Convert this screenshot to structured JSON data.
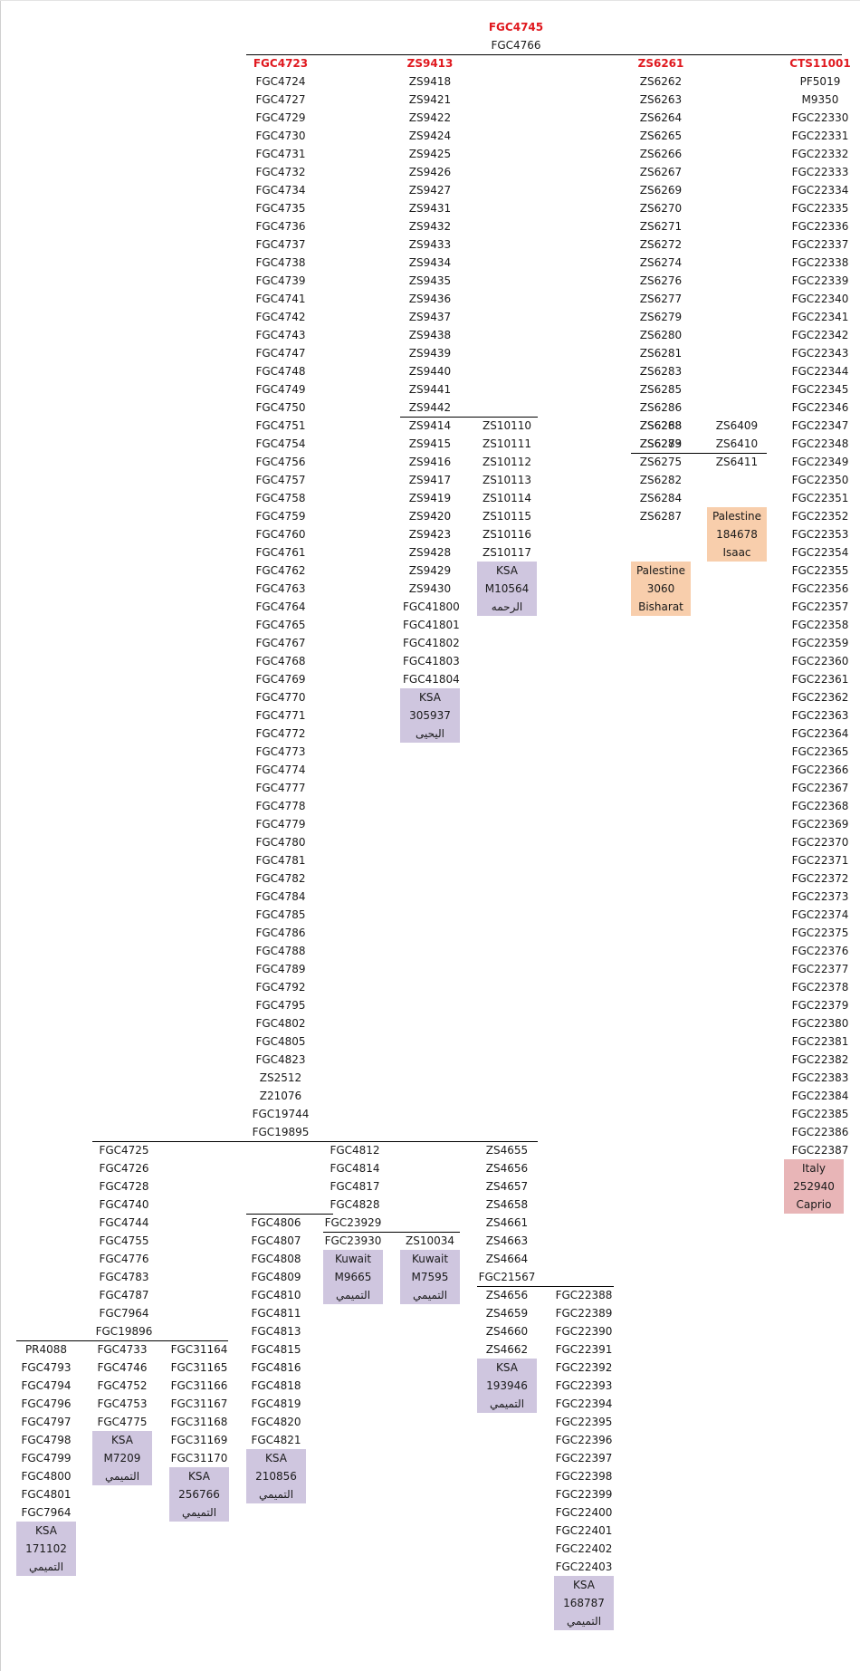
{
  "colors": {
    "head_text": "#e0191f",
    "text": "#1a1a1a",
    "ksa_box": "#cfc6df",
    "kuwait_box": "#cfc6df",
    "palestine_box": "#f8ceac",
    "italy_box": "#e8b5b7"
  },
  "columns": [
    {
      "id": "root",
      "cells": [
        {
          "t": "FGC4745",
          "h": true
        },
        {
          "t": "FGC4766"
        }
      ]
    },
    {
      "id": "fgc4723",
      "cells": [
        {
          "t": "FGC4723",
          "h": true
        },
        {
          "t": "FGC4724"
        },
        {
          "t": "FGC4727"
        },
        {
          "t": "FGC4729"
        },
        {
          "t": "FGC4730"
        },
        {
          "t": "FGC4731"
        },
        {
          "t": "FGC4732"
        },
        {
          "t": "FGC4734"
        },
        {
          "t": "FGC4735"
        },
        {
          "t": "FGC4736"
        },
        {
          "t": "FGC4737"
        },
        {
          "t": "FGC4738"
        },
        {
          "t": "FGC4739"
        },
        {
          "t": "FGC4741"
        },
        {
          "t": "FGC4742"
        },
        {
          "t": "FGC4743"
        },
        {
          "t": "FGC4747"
        },
        {
          "t": "FGC4748"
        },
        {
          "t": "FGC4749"
        },
        {
          "t": "FGC4750"
        },
        {
          "t": "FGC4751"
        },
        {
          "t": "FGC4754"
        },
        {
          "t": "FGC4756"
        },
        {
          "t": "FGC4757"
        },
        {
          "t": "FGC4758"
        },
        {
          "t": "FGC4759"
        },
        {
          "t": "FGC4760"
        },
        {
          "t": "FGC4761"
        },
        {
          "t": "FGC4762"
        },
        {
          "t": "FGC4763"
        },
        {
          "t": "FGC4764"
        },
        {
          "t": "FGC4765"
        },
        {
          "t": "FGC4767"
        },
        {
          "t": "FGC4768"
        },
        {
          "t": "FGC4769"
        },
        {
          "t": "FGC4770"
        },
        {
          "t": "FGC4771"
        },
        {
          "t": "FGC4772"
        },
        {
          "t": "FGC4773"
        },
        {
          "t": "FGC4774"
        },
        {
          "t": "FGC4777"
        },
        {
          "t": "FGC4778"
        },
        {
          "t": "FGC4779"
        },
        {
          "t": "FGC4780"
        },
        {
          "t": "FGC4781"
        },
        {
          "t": "FGC4782"
        },
        {
          "t": "FGC4784"
        },
        {
          "t": "FGC4785"
        },
        {
          "t": "FGC4786"
        },
        {
          "t": "FGC4788"
        },
        {
          "t": "FGC4789"
        },
        {
          "t": "FGC4792"
        },
        {
          "t": "FGC4795"
        },
        {
          "t": "FGC4802"
        },
        {
          "t": "FGC4805"
        },
        {
          "t": "FGC4823"
        },
        {
          "t": "ZS2512"
        },
        {
          "t": "Z21076"
        },
        {
          "t": "FGC19744"
        },
        {
          "t": "FGC19895"
        }
      ]
    },
    {
      "id": "zs9413",
      "cells": [
        {
          "t": "ZS9413",
          "h": true
        },
        {
          "t": "ZS9418"
        },
        {
          "t": "ZS9421"
        },
        {
          "t": "ZS9422"
        },
        {
          "t": "ZS9424"
        },
        {
          "t": "ZS9425"
        },
        {
          "t": "ZS9426"
        },
        {
          "t": "ZS9427"
        },
        {
          "t": "ZS9431"
        },
        {
          "t": "ZS9432"
        },
        {
          "t": "ZS9433"
        },
        {
          "t": "ZS9434"
        },
        {
          "t": "ZS9435"
        },
        {
          "t": "ZS9436"
        },
        {
          "t": "ZS9437"
        },
        {
          "t": "ZS9438"
        },
        {
          "t": "ZS9439"
        },
        {
          "t": "ZS9440"
        },
        {
          "t": "ZS9441"
        },
        {
          "t": "ZS9442"
        }
      ]
    },
    {
      "id": "zs9414",
      "cells": [
        {
          "t": "ZS9414"
        },
        {
          "t": "ZS9415"
        },
        {
          "t": "ZS9416"
        },
        {
          "t": "ZS9417"
        },
        {
          "t": "ZS9419"
        },
        {
          "t": "ZS9420"
        },
        {
          "t": "ZS9423"
        },
        {
          "t": "ZS9428"
        },
        {
          "t": "ZS9429"
        },
        {
          "t": "ZS9430"
        },
        {
          "t": "FGC41800"
        },
        {
          "t": "FGC41801"
        },
        {
          "t": "FGC41802"
        },
        {
          "t": "FGC41803"
        },
        {
          "t": "FGC41804"
        }
      ]
    },
    {
      "id": "zs10110",
      "cells": [
        {
          "t": "ZS10110"
        },
        {
          "t": "ZS10111"
        },
        {
          "t": "ZS10112"
        },
        {
          "t": "ZS10113"
        },
        {
          "t": "ZS10114"
        },
        {
          "t": "ZS10115"
        },
        {
          "t": "ZS10116"
        },
        {
          "t": "ZS10117"
        }
      ]
    },
    {
      "id": "zs6261",
      "cells": [
        {
          "t": "ZS6261",
          "h": true
        },
        {
          "t": "ZS6262"
        },
        {
          "t": "ZS6263"
        },
        {
          "t": "ZS6264"
        },
        {
          "t": "ZS6265"
        },
        {
          "t": "ZS6266"
        },
        {
          "t": "ZS6267"
        },
        {
          "t": "ZS6269"
        },
        {
          "t": "ZS6270"
        },
        {
          "t": "ZS6271"
        },
        {
          "t": "ZS6272"
        },
        {
          "t": "ZS6274"
        },
        {
          "t": "ZS6276"
        },
        {
          "t": "ZS6277"
        },
        {
          "t": "ZS6279"
        },
        {
          "t": "ZS6280"
        },
        {
          "t": "ZS6281"
        },
        {
          "t": "ZS6283"
        },
        {
          "t": "ZS6285"
        },
        {
          "t": "ZS6286"
        },
        {
          "t": "ZS6288"
        },
        {
          "t": "ZS6289"
        }
      ]
    },
    {
      "id": "zs6268",
      "cells": [
        {
          "t": "ZS6268"
        },
        {
          "t": "ZS6273"
        },
        {
          "t": "ZS6275"
        },
        {
          "t": "ZS6282"
        },
        {
          "t": "ZS6284"
        },
        {
          "t": "ZS6287"
        }
      ]
    },
    {
      "id": "zs6409",
      "cells": [
        {
          "t": "ZS6409"
        },
        {
          "t": "ZS6410"
        },
        {
          "t": "ZS6411"
        }
      ]
    },
    {
      "id": "cts11001",
      "cells": [
        {
          "t": "CTS11001",
          "h": true
        },
        {
          "t": "PF5019"
        },
        {
          "t": "M9350"
        },
        {
          "t": "FGC22330"
        },
        {
          "t": "FGC22331"
        },
        {
          "t": "FGC22332"
        },
        {
          "t": "FGC22333"
        },
        {
          "t": "FGC22334"
        },
        {
          "t": "FGC22335"
        },
        {
          "t": "FGC22336"
        },
        {
          "t": "FGC22337"
        },
        {
          "t": "FGC22338"
        },
        {
          "t": "FGC22339"
        },
        {
          "t": "FGC22340"
        },
        {
          "t": "FGC22341"
        },
        {
          "t": "FGC22342"
        },
        {
          "t": "FGC22343"
        },
        {
          "t": "FGC22344"
        },
        {
          "t": "FGC22345"
        },
        {
          "t": "FGC22346"
        },
        {
          "t": "FGC22347"
        },
        {
          "t": "FGC22348"
        },
        {
          "t": "FGC22349"
        },
        {
          "t": "FGC22350"
        },
        {
          "t": "FGC22351"
        },
        {
          "t": "FGC22352"
        },
        {
          "t": "FGC22353"
        },
        {
          "t": "FGC22354"
        },
        {
          "t": "FGC22355"
        },
        {
          "t": "FGC22356"
        },
        {
          "t": "FGC22357"
        },
        {
          "t": "FGC22358"
        },
        {
          "t": "FGC22359"
        },
        {
          "t": "FGC22360"
        },
        {
          "t": "FGC22361"
        },
        {
          "t": "FGC22362"
        },
        {
          "t": "FGC22363"
        },
        {
          "t": "FGC22364"
        },
        {
          "t": "FGC22365"
        },
        {
          "t": "FGC22366"
        },
        {
          "t": "FGC22367"
        },
        {
          "t": "FGC22368"
        },
        {
          "t": "FGC22369"
        },
        {
          "t": "FGC22370"
        },
        {
          "t": "FGC22371"
        },
        {
          "t": "FGC22372"
        },
        {
          "t": "FGC22373"
        },
        {
          "t": "FGC22374"
        },
        {
          "t": "FGC22375"
        },
        {
          "t": "FGC22376"
        },
        {
          "t": "FGC22377"
        },
        {
          "t": "FGC22378"
        },
        {
          "t": "FGC22379"
        },
        {
          "t": "FGC22380"
        },
        {
          "t": "FGC22381"
        },
        {
          "t": "FGC22382"
        },
        {
          "t": "FGC22383"
        },
        {
          "t": "FGC22384"
        },
        {
          "t": "FGC22385"
        },
        {
          "t": "FGC22386"
        },
        {
          "t": "FGC22387"
        }
      ]
    },
    {
      "id": "fgc4725",
      "cells": [
        {
          "t": "FGC4725"
        },
        {
          "t": "FGC4726"
        },
        {
          "t": "FGC4728"
        },
        {
          "t": "FGC4740"
        },
        {
          "t": "FGC4744"
        },
        {
          "t": "FGC4755"
        },
        {
          "t": "FGC4776"
        },
        {
          "t": "FGC4783"
        },
        {
          "t": "FGC4787"
        },
        {
          "t": "FGC7964"
        },
        {
          "t": "FGC19896"
        }
      ]
    },
    {
      "id": "fgc4812",
      "cells": [
        {
          "t": "FGC4812"
        },
        {
          "t": "FGC4814"
        },
        {
          "t": "FGC4817"
        },
        {
          "t": "FGC4828"
        }
      ]
    },
    {
      "id": "zs4655",
      "cells": [
        {
          "t": "ZS4655"
        },
        {
          "t": "ZS4656"
        },
        {
          "t": "ZS4657"
        },
        {
          "t": "ZS4658"
        },
        {
          "t": "ZS4661"
        },
        {
          "t": "ZS4663"
        },
        {
          "t": "ZS4664"
        },
        {
          "t": "FGC21567"
        }
      ]
    },
    {
      "id": "fgc4806",
      "cells": [
        {
          "t": "FGC4806"
        },
        {
          "t": "FGC4807"
        },
        {
          "t": "FGC4808"
        },
        {
          "t": "FGC4809"
        },
        {
          "t": "FGC4810"
        },
        {
          "t": "FGC4811"
        },
        {
          "t": "FGC4813"
        },
        {
          "t": "FGC4815"
        },
        {
          "t": "FGC4816"
        },
        {
          "t": "FGC4818"
        },
        {
          "t": "FGC4819"
        },
        {
          "t": "FGC4820"
        },
        {
          "t": "FGC4821"
        }
      ]
    },
    {
      "id": "fgc23929",
      "cells": [
        {
          "t": "FGC23929"
        }
      ]
    },
    {
      "id": "fgc23930",
      "cells": [
        {
          "t": "FGC23930"
        }
      ]
    },
    {
      "id": "zs10034",
      "cells": [
        {
          "t": "ZS10034"
        }
      ]
    },
    {
      "id": "zs4656b",
      "cells": [
        {
          "t": "ZS4656"
        },
        {
          "t": "ZS4659"
        },
        {
          "t": "ZS4660"
        },
        {
          "t": "ZS4662"
        }
      ]
    },
    {
      "id": "fgc22388",
      "cells": [
        {
          "t": "FGC22388"
        },
        {
          "t": "FGC22389"
        },
        {
          "t": "FGC22390"
        },
        {
          "t": "FGC22391"
        },
        {
          "t": "FGC22392"
        },
        {
          "t": "FGC22393"
        },
        {
          "t": "FGC22394"
        },
        {
          "t": "FGC22395"
        },
        {
          "t": "FGC22396"
        },
        {
          "t": "FGC22397"
        },
        {
          "t": "FGC22398"
        },
        {
          "t": "FGC22399"
        },
        {
          "t": "FGC22400"
        },
        {
          "t": "FGC22401"
        },
        {
          "t": "FGC22402"
        },
        {
          "t": "FGC22403"
        }
      ]
    },
    {
      "id": "pr4088",
      "cells": [
        {
          "t": "PR4088"
        },
        {
          "t": "FGC4793"
        },
        {
          "t": "FGC4794"
        },
        {
          "t": "FGC4796"
        },
        {
          "t": "FGC4797"
        },
        {
          "t": "FGC4798"
        },
        {
          "t": "FGC4799"
        },
        {
          "t": "FGC4800"
        },
        {
          "t": "FGC4801"
        },
        {
          "t": "FGC7964"
        }
      ]
    },
    {
      "id": "fgc4733",
      "cells": [
        {
          "t": "FGC4733"
        },
        {
          "t": "FGC4746"
        },
        {
          "t": "FGC4752"
        },
        {
          "t": "FGC4753"
        },
        {
          "t": "FGC4775"
        }
      ]
    },
    {
      "id": "fgc31164",
      "cells": [
        {
          "t": "FGC31164"
        },
        {
          "t": "FGC31165"
        },
        {
          "t": "FGC31166"
        },
        {
          "t": "FGC31167"
        },
        {
          "t": "FGC31168"
        },
        {
          "t": "FGC31169"
        },
        {
          "t": "FGC31170"
        }
      ]
    }
  ],
  "samples": [
    {
      "id": "ksa-m10564",
      "kind": "ksa_box",
      "lines": [
        "KSA",
        "M10564",
        "الرحمه"
      ]
    },
    {
      "id": "palestine-3060",
      "kind": "palestine_box",
      "lines": [
        "Palestine",
        "3060",
        "Bisharat"
      ]
    },
    {
      "id": "palestine-184678",
      "kind": "palestine_box",
      "lines": [
        "Palestine",
        "184678",
        "Isaac"
      ]
    },
    {
      "id": "ksa-305937",
      "kind": "ksa_box",
      "lines": [
        "KSA",
        "305937",
        "اليحيى"
      ]
    },
    {
      "id": "italy-252940",
      "kind": "italy_box",
      "lines": [
        "Italy",
        "252940",
        "Caprio"
      ]
    },
    {
      "id": "kuwait-m9665",
      "kind": "kuwait_box",
      "lines": [
        "Kuwait",
        "M9665",
        "التميمي"
      ]
    },
    {
      "id": "kuwait-m7595",
      "kind": "kuwait_box",
      "lines": [
        "Kuwait",
        "M7595",
        "التميمي"
      ]
    },
    {
      "id": "ksa-193946",
      "kind": "ksa_box",
      "lines": [
        "KSA",
        "193946",
        "التميمي"
      ]
    },
    {
      "id": "ksa-m7209",
      "kind": "ksa_box",
      "lines": [
        "KSA",
        "M7209",
        "التميمي"
      ]
    },
    {
      "id": "ksa-256766",
      "kind": "ksa_box",
      "lines": [
        "KSA",
        "256766",
        "التميمي"
      ]
    },
    {
      "id": "ksa-210856",
      "kind": "ksa_box",
      "lines": [
        "KSA",
        "210856",
        "التميمي"
      ]
    },
    {
      "id": "ksa-171102",
      "kind": "ksa_box",
      "lines": [
        "KSA",
        "171102",
        "التميمي"
      ]
    },
    {
      "id": "ksa-168787",
      "kind": "ksa_box",
      "lines": [
        "KSA",
        "168787",
        "التميمي"
      ]
    }
  ]
}
